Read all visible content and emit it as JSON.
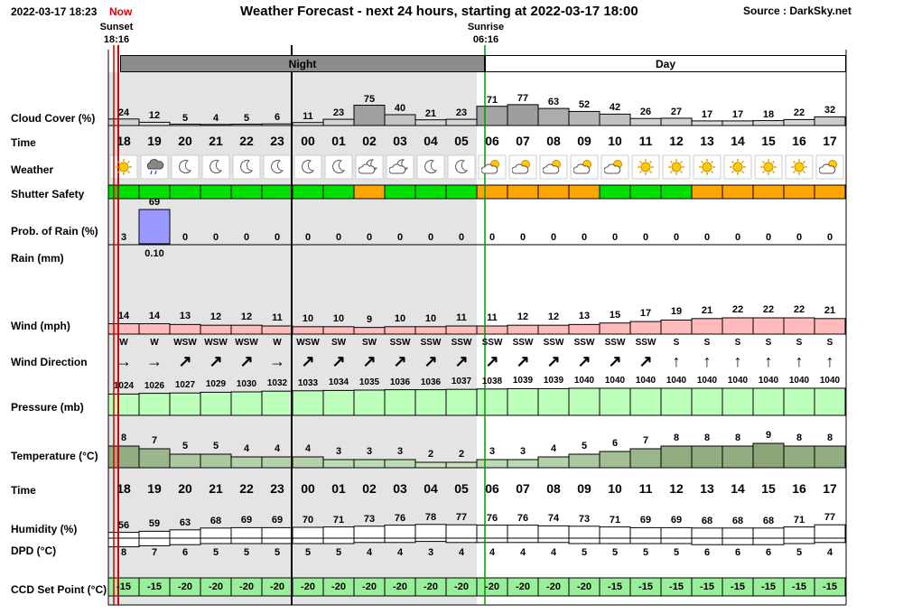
{
  "header": {
    "now_datetime": "2022-03-17 18:23",
    "now_label": "Now",
    "title": "Weather Forecast - next 24 hours, starting at 2022-03-17 18:00",
    "source": "Source : DarkSky.net",
    "sunset_label": "Sunset",
    "sunset_time": "18:16",
    "sunrise_label": "Sunrise",
    "sunrise_time": "06:16",
    "night_label": "Night",
    "day_label": "Day"
  },
  "rows": {
    "cloud_cover": "Cloud Cover (%)",
    "time": "Time",
    "weather": "Weather",
    "shutter": "Shutter Safety",
    "rain_prob": "Prob. of Rain (%)",
    "rain_mm": "Rain (mm)",
    "wind": "Wind (mph)",
    "wind_dir": "Wind Direction",
    "pressure": "Pressure (mb)",
    "temperature": "Temperature (°C)",
    "time2": "Time",
    "humidity": "Humidity (%)",
    "dpd": "DPD (°C)",
    "ccd": "CCD Set Point (°C)"
  },
  "colors": {
    "night_bg": "#e4e4e4",
    "night_band": "#8c8c8c",
    "sunset_line": "#cc0000",
    "sunrise_line": "#009900",
    "shutter_green": "#00e000",
    "shutter_orange": "#ffa500",
    "rain_bar": "#9999ff",
    "wind_bar": "#ffbbbb",
    "pressure_bar": "#bbffbb",
    "ccd_bar": "#99ee99"
  },
  "chart_data": {
    "type": "table",
    "hours": [
      "18",
      "19",
      "20",
      "21",
      "22",
      "23",
      "00",
      "01",
      "02",
      "03",
      "04",
      "05",
      "06",
      "07",
      "08",
      "09",
      "10",
      "11",
      "12",
      "13",
      "14",
      "15",
      "16",
      "17"
    ],
    "cloud_cover": [
      24,
      12,
      5,
      4,
      5,
      6,
      11,
      23,
      75,
      40,
      21,
      23,
      71,
      77,
      63,
      52,
      42,
      26,
      27,
      17,
      17,
      18,
      22,
      32
    ],
    "weather": [
      "sun",
      "rain",
      "moon",
      "moon",
      "moon",
      "moon",
      "moon",
      "moon",
      "cloud-moon",
      "cloud-moon",
      "moon",
      "moon",
      "cloud-sun",
      "cloud-sun",
      "cloud-sun",
      "cloud-sun",
      "cloud-sun",
      "sun",
      "sun",
      "sun",
      "sun",
      "sun",
      "sun",
      "cloud-sun"
    ],
    "shutter_safety": [
      "green",
      "green",
      "green",
      "green",
      "green",
      "green",
      "green",
      "green",
      "orange",
      "green",
      "green",
      "green",
      "orange",
      "orange",
      "orange",
      "orange",
      "green",
      "green",
      "green",
      "orange",
      "orange",
      "orange",
      "orange",
      "orange"
    ],
    "rain_probability": [
      3,
      69,
      0,
      0,
      0,
      0,
      0,
      0,
      0,
      0,
      0,
      0,
      0,
      0,
      0,
      0,
      0,
      0,
      0,
      0,
      0,
      0,
      0,
      0
    ],
    "rain_mm": [
      {
        "hour": "19",
        "value": "0.10"
      }
    ],
    "wind_mph": [
      14,
      14,
      13,
      12,
      12,
      11,
      10,
      10,
      9,
      10,
      10,
      11,
      11,
      12,
      12,
      13,
      15,
      17,
      19,
      21,
      22,
      22,
      22,
      21
    ],
    "wind_direction": [
      "W",
      "W",
      "WSW",
      "WSW",
      "WSW",
      "W",
      "WSW",
      "SW",
      "SW",
      "SSW",
      "SSW",
      "SSW",
      "SSW",
      "SSW",
      "SSW",
      "SSW",
      "SSW",
      "SSW",
      "S",
      "S",
      "S",
      "S",
      "S",
      "S"
    ],
    "pressure_mb": [
      1024,
      1026,
      1027,
      1029,
      1030,
      1032,
      1033,
      1034,
      1035,
      1036,
      1036,
      1037,
      1038,
      1039,
      1039,
      1040,
      1040,
      1040,
      1040,
      1040,
      1040,
      1040,
      1040,
      1040
    ],
    "temperature_c": [
      8,
      7,
      5,
      5,
      4,
      4,
      4,
      3,
      3,
      3,
      2,
      2,
      3,
      3,
      4,
      5,
      6,
      7,
      8,
      8,
      8,
      9,
      8,
      8
    ],
    "humidity_pct": [
      56,
      59,
      63,
      68,
      69,
      69,
      70,
      71,
      73,
      76,
      78,
      77,
      76,
      76,
      74,
      73,
      71,
      69,
      69,
      68,
      68,
      68,
      71,
      77
    ],
    "dpd_c": [
      8,
      7,
      6,
      5,
      5,
      5,
      5,
      5,
      4,
      4,
      3,
      4,
      4,
      4,
      4,
      5,
      5,
      5,
      5,
      6,
      6,
      6,
      5,
      4
    ],
    "ccd_set_point_c": [
      -15,
      -15,
      -20,
      -20,
      -20,
      -20,
      -20,
      -20,
      -20,
      -20,
      -20,
      -20,
      -20,
      -20,
      -20,
      -20,
      -15,
      -15,
      -15,
      -15,
      -15,
      -15,
      -15,
      -15
    ]
  }
}
